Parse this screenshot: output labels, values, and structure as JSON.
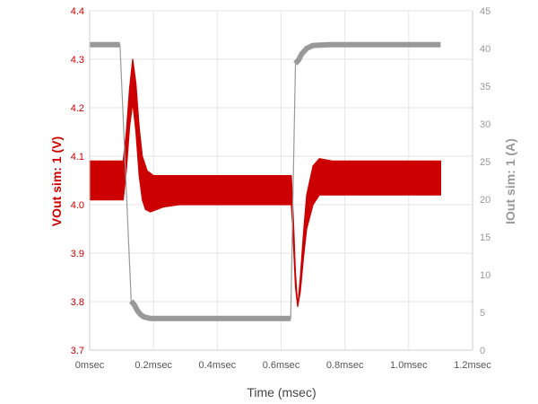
{
  "chart_data": {
    "type": "line",
    "xlabel": "Time (msec)",
    "ylabel_left": "VOut sim: 1 (V)",
    "ylabel_right": "IOut sim: 1 (A)",
    "x_ticks": [
      "0msec",
      "0.2msec",
      "0.4msec",
      "0.6msec",
      "0.8msec",
      "1.0msec",
      "1.2msec"
    ],
    "x_tick_values": [
      0,
      0.2,
      0.4,
      0.6,
      0.8,
      1.0,
      1.2
    ],
    "y_left_ticks": [
      "3.7",
      "3.8",
      "3.9",
      "4.0",
      "4.1",
      "4.2",
      "4.3",
      "4.4"
    ],
    "y_left_tick_values": [
      3.7,
      3.8,
      3.9,
      4.0,
      4.1,
      4.2,
      4.3,
      4.4
    ],
    "y_right_ticks": [
      "0",
      "5",
      "10",
      "15",
      "20",
      "25",
      "30",
      "35",
      "40",
      "45"
    ],
    "y_right_tick_values": [
      0,
      5,
      10,
      15,
      20,
      25,
      30,
      35,
      40,
      45
    ],
    "xlim": [
      0,
      1.2
    ],
    "ylim_left": [
      3.7,
      4.4
    ],
    "ylim_right": [
      0,
      45
    ],
    "grid": true,
    "colors": {
      "vout": "#cc0000",
      "iout": "#999999"
    },
    "series": [
      {
        "axis": "left",
        "style": "ripple-band",
        "upper": [
          [
            0.0,
            4.09
          ],
          [
            0.105,
            4.09
          ],
          [
            0.115,
            4.15
          ],
          [
            0.125,
            4.24
          ],
          [
            0.135,
            4.3
          ],
          [
            0.145,
            4.25
          ],
          [
            0.155,
            4.16
          ],
          [
            0.165,
            4.1
          ],
          [
            0.18,
            4.07
          ],
          [
            0.2,
            4.06
          ],
          [
            0.25,
            4.06
          ],
          [
            0.632,
            4.06
          ],
          [
            0.638,
            3.98
          ],
          [
            0.645,
            3.86
          ],
          [
            0.652,
            3.79
          ],
          [
            0.66,
            3.85
          ],
          [
            0.67,
            3.94
          ],
          [
            0.68,
            4.02
          ],
          [
            0.7,
            4.08
          ],
          [
            0.72,
            4.095
          ],
          [
            0.76,
            4.09
          ],
          [
            1.1,
            4.09
          ]
        ],
        "lower": [
          [
            0.0,
            4.01
          ],
          [
            0.105,
            4.01
          ],
          [
            0.115,
            4.07
          ],
          [
            0.125,
            4.16
          ],
          [
            0.135,
            4.21
          ],
          [
            0.145,
            4.15
          ],
          [
            0.155,
            4.06
          ],
          [
            0.165,
            4.01
          ],
          [
            0.175,
            3.99
          ],
          [
            0.19,
            3.985
          ],
          [
            0.23,
            3.995
          ],
          [
            0.28,
            4.0
          ],
          [
            0.632,
            4.0
          ],
          [
            0.638,
            3.93
          ],
          [
            0.645,
            3.83
          ],
          [
            0.652,
            3.79
          ],
          [
            0.66,
            3.82
          ],
          [
            0.67,
            3.89
          ],
          [
            0.68,
            3.95
          ],
          [
            0.7,
            4.0
          ],
          [
            0.72,
            4.02
          ],
          [
            0.76,
            4.02
          ],
          [
            1.1,
            4.02
          ]
        ]
      },
      {
        "axis": "right",
        "style": "line",
        "points": [
          [
            0.0,
            40.5
          ],
          [
            0.085,
            40.5
          ],
          [
            0.095,
            40.5
          ],
          [
            0.13,
            6.5
          ],
          [
            0.14,
            6.0
          ],
          [
            0.15,
            5.2
          ],
          [
            0.16,
            4.7
          ],
          [
            0.17,
            4.4
          ],
          [
            0.19,
            4.2
          ],
          [
            0.25,
            4.2
          ],
          [
            0.6,
            4.2
          ],
          [
            0.63,
            4.2
          ],
          [
            0.645,
            38.0
          ],
          [
            0.655,
            38.5
          ],
          [
            0.665,
            39.3
          ],
          [
            0.68,
            40.0
          ],
          [
            0.7,
            40.4
          ],
          [
            0.75,
            40.5
          ],
          [
            1.1,
            40.5
          ]
        ]
      }
    ]
  }
}
